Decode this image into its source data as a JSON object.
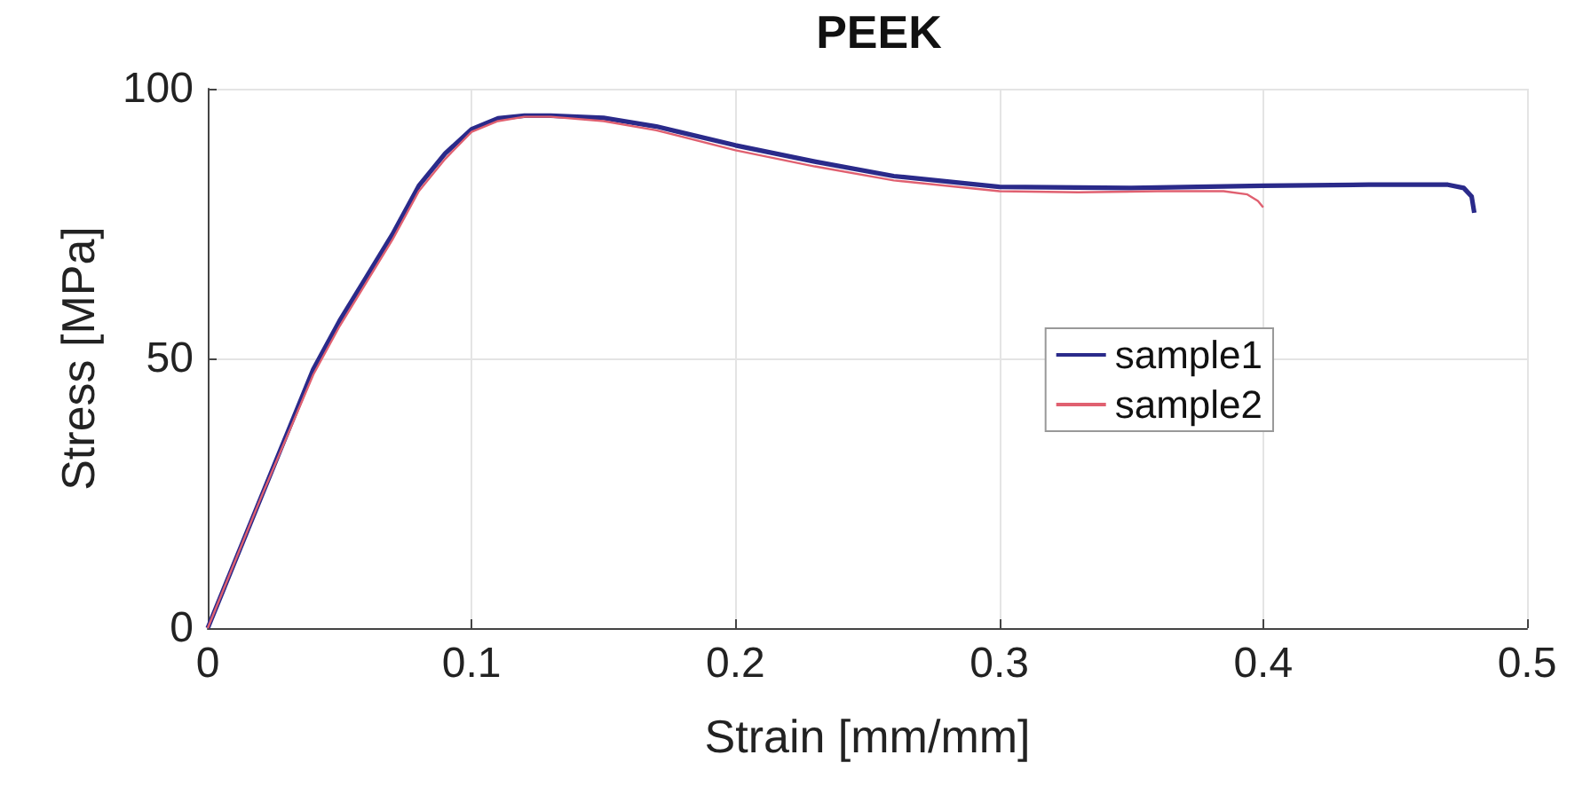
{
  "chart_data": {
    "type": "line",
    "title": "PEEK",
    "xlabel": "Strain [mm/mm]",
    "ylabel": "Stress [MPa]",
    "xlim": [
      0,
      0.5
    ],
    "xticks": [
      0,
      0.1,
      0.2,
      0.3,
      0.4,
      0.5
    ],
    "ylim": [
      0,
      100
    ],
    "yticks": [
      0,
      50,
      100
    ],
    "grid": true,
    "legend": "right",
    "marker": "none",
    "line_style": "solid",
    "series": [
      {
        "name": "sample1",
        "color": "#2a2a8a",
        "x": [
          0,
          0.01,
          0.02,
          0.03,
          0.04,
          0.05,
          0.06,
          0.07,
          0.08,
          0.09,
          0.1,
          0.11,
          0.12,
          0.13,
          0.15,
          0.17,
          0.2,
          0.23,
          0.26,
          0.3,
          0.35,
          0.4,
          0.44,
          0.47,
          0.476,
          0.479,
          0.48
        ],
        "values": [
          0,
          12,
          24,
          36,
          48,
          57,
          65,
          73,
          82,
          88,
          92.5,
          94.5,
          95,
          95,
          94.6,
          93,
          89.5,
          86.5,
          83.8,
          81.8,
          81.6,
          82,
          82.2,
          82.2,
          81.6,
          80,
          77
        ]
      },
      {
        "name": "sample2",
        "color": "#e06070",
        "x": [
          0,
          0.01,
          0.02,
          0.03,
          0.04,
          0.05,
          0.06,
          0.07,
          0.08,
          0.09,
          0.1,
          0.11,
          0.12,
          0.13,
          0.15,
          0.17,
          0.2,
          0.23,
          0.26,
          0.3,
          0.33,
          0.36,
          0.385,
          0.394,
          0.398,
          0.4
        ],
        "values": [
          0,
          12,
          24,
          35.5,
          47,
          56,
          64,
          72,
          81,
          87,
          92,
          94,
          94.8,
          94.8,
          94,
          92.3,
          88.6,
          85.6,
          83,
          81,
          80.8,
          81,
          81,
          80.4,
          79.2,
          78
        ]
      }
    ]
  }
}
